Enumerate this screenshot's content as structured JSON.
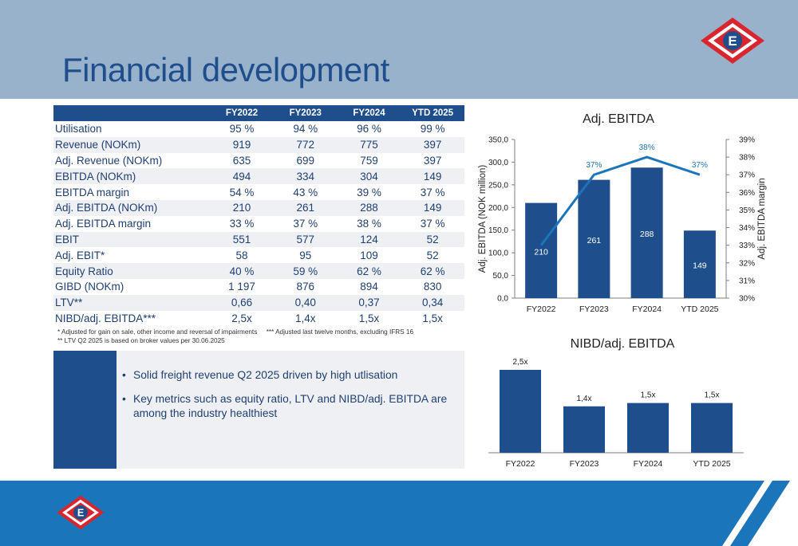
{
  "page": {
    "title": "Financial development"
  },
  "table": {
    "columns": [
      "FY2022",
      "FY2023",
      "FY2024",
      "YTD 2025"
    ],
    "rows": [
      {
        "label": "Utilisation",
        "values": [
          "95 %",
          "94 %",
          "96 %",
          "99 %"
        ]
      },
      {
        "label": "Revenue (NOKm)",
        "values": [
          "919",
          "772",
          "775",
          "397"
        ]
      },
      {
        "label": "Adj. Revenue (NOKm)",
        "values": [
          "635",
          "699",
          "759",
          "397"
        ]
      },
      {
        "label": "EBITDA (NOKm)",
        "values": [
          "494",
          "334",
          "304",
          "149"
        ]
      },
      {
        "label": "EBITDA margin",
        "values": [
          "54 %",
          "43 %",
          "39 %",
          "37 %"
        ]
      },
      {
        "label": "Adj. EBITDA (NOKm)",
        "values": [
          "210",
          "261",
          "288",
          "149"
        ]
      },
      {
        "label": "Adj. EBITDA margin",
        "values": [
          "33 %",
          "37 %",
          "38 %",
          "37 %"
        ]
      },
      {
        "label": "EBIT",
        "values": [
          "551",
          "577",
          "124",
          "52"
        ]
      },
      {
        "label": "Adj. EBIT*",
        "values": [
          "58",
          "95",
          "109",
          "52"
        ]
      },
      {
        "label": "Equity Ratio",
        "values": [
          "40 %",
          "59 %",
          "62 %",
          "62 %"
        ]
      },
      {
        "label": "GIBD (NOKm)",
        "values": [
          "1 197",
          "876",
          "894",
          "830"
        ]
      },
      {
        "label": "LTV**",
        "values": [
          "0,66",
          "0,40",
          "0,37",
          "0,34"
        ]
      },
      {
        "label": "NIBD/adj. EBITDA***",
        "values": [
          "2,5x",
          "1,4x",
          "1,5x",
          "1,5x"
        ]
      }
    ],
    "notes": {
      "note1": "* Adjusted for gain on sale, other income and reversal of impairments",
      "note3": "*** Adjusted last twelve months, excluding IFRS 16",
      "note2": "** LTV Q2 2025 is based on broker values per 30.06.2025"
    }
  },
  "bullets": [
    "Solid freight revenue Q2 2025 driven by high utlisation",
    "Key metrics such as equity ratio, LTV and NIBD/adj. EBITDA are among the industry healthiest"
  ],
  "bullet_marker": "•",
  "logo": {
    "letter": "E"
  },
  "colors": {
    "header": "#99b2cc",
    "navy": "#1f4e8c",
    "title": "#1f4e8c",
    "bar": "#1f4e8c",
    "line": "#1b75bb",
    "footer": "#1b75bb",
    "table_alt": "#eef0f3",
    "logo_red": "#d9262e"
  },
  "chart_data": [
    {
      "type": "bar",
      "title": "Adj. EBITDA",
      "categories": [
        "FY2022",
        "FY2023",
        "FY2024",
        "YTD 2025"
      ],
      "series": [
        {
          "values": [
            210,
            261,
            288,
            149
          ],
          "labels": [
            "210",
            "261",
            "288",
            "149"
          ],
          "axis": "left"
        },
        {
          "type": "line",
          "values": [
            33,
            37,
            38,
            37
          ],
          "labels": [
            "",
            "37%",
            "38%",
            "37%"
          ],
          "axis": "right"
        }
      ],
      "ylabel": "Adj. EBITDA (NOK million)",
      "y2label": "Adj. EBITDA margin",
      "ylim": [
        0,
        350
      ],
      "yticks": [
        "0,0",
        "50,0",
        "100,0",
        "150,0",
        "200,0",
        "250,0",
        "300,0",
        "350,0"
      ],
      "y2lim": [
        30,
        39
      ],
      "y2ticks": [
        "30%",
        "31%",
        "32%",
        "33%",
        "34%",
        "35%",
        "36%",
        "37%",
        "38%",
        "39%"
      ],
      "grid": false,
      "legend": "none"
    },
    {
      "type": "bar",
      "title": "NIBD/adj. EBITDA",
      "categories": [
        "FY2022",
        "FY2023",
        "FY2024",
        "YTD 2025"
      ],
      "values": [
        2.5,
        1.4,
        1.5,
        1.5
      ],
      "labels": [
        "2,5x",
        "1,4x",
        "1,5x",
        "1,5x"
      ],
      "ylim": [
        0,
        2.5
      ],
      "grid": false,
      "legend": "none"
    }
  ]
}
